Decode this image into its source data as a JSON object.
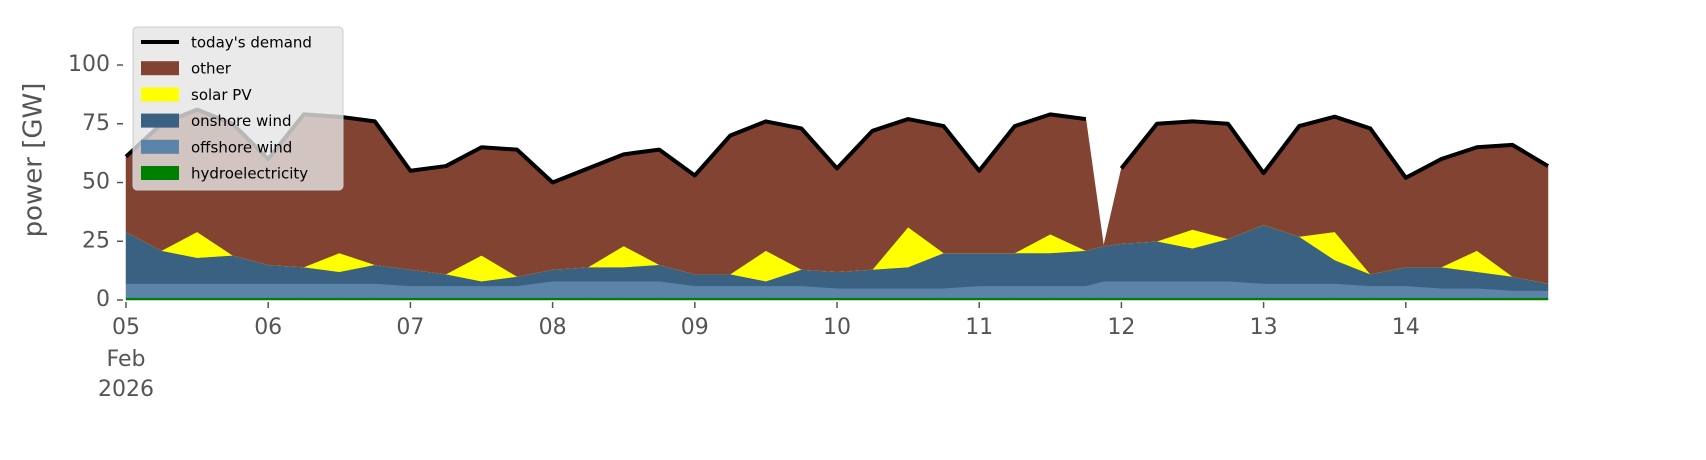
{
  "chart_data": {
    "type": "stacked_area",
    "ylabel": "power [GW]",
    "x_date_label": [
      "Feb",
      "2026"
    ],
    "xlim": [
      "2026-02-05T00:00",
      "2026-02-15T00:00"
    ],
    "xticks": [
      {
        "value": "2026-02-05T00:00",
        "label": "05"
      },
      {
        "value": "2026-02-06T00:00",
        "label": "06"
      },
      {
        "value": "2026-02-07T00:00",
        "label": "07"
      },
      {
        "value": "2026-02-08T00:00",
        "label": "08"
      },
      {
        "value": "2026-02-09T00:00",
        "label": "09"
      },
      {
        "value": "2026-02-10T00:00",
        "label": "10"
      },
      {
        "value": "2026-02-11T00:00",
        "label": "11"
      },
      {
        "value": "2026-02-12T00:00",
        "label": "12"
      },
      {
        "value": "2026-02-13T00:00",
        "label": "13"
      },
      {
        "value": "2026-02-14T00:00",
        "label": "14"
      }
    ],
    "ylim": [
      0,
      120
    ],
    "yticks": [
      0,
      25,
      50,
      75,
      100
    ],
    "legend": "upper left",
    "x": [
      "2026-02-05T00:00",
      "2026-02-05T06:00",
      "2026-02-05T12:00",
      "2026-02-05T18:00",
      "2026-02-06T00:00",
      "2026-02-06T06:00",
      "2026-02-06T12:00",
      "2026-02-06T18:00",
      "2026-02-07T00:00",
      "2026-02-07T06:00",
      "2026-02-07T12:00",
      "2026-02-07T18:00",
      "2026-02-08T00:00",
      "2026-02-08T06:00",
      "2026-02-08T12:00",
      "2026-02-08T18:00",
      "2026-02-09T00:00",
      "2026-02-09T06:00",
      "2026-02-09T12:00",
      "2026-02-09T18:00",
      "2026-02-10T00:00",
      "2026-02-10T06:00",
      "2026-02-10T12:00",
      "2026-02-10T18:00",
      "2026-02-11T00:00",
      "2026-02-11T06:00",
      "2026-02-11T12:00",
      "2026-02-11T18:00",
      "2026-02-11T21:00",
      "2026-02-12T00:00",
      "2026-02-12T06:00",
      "2026-02-12T12:00",
      "2026-02-12T18:00",
      "2026-02-13T00:00",
      "2026-02-13T06:00",
      "2026-02-13T12:00",
      "2026-02-13T18:00",
      "2026-02-14T00:00",
      "2026-02-14T06:00",
      "2026-02-14T12:00",
      "2026-02-14T18:00",
      "2026-02-15T00:00"
    ],
    "series": [
      {
        "name": "today's demand",
        "kind": "line",
        "color": "#000000",
        "values": [
          61,
          75,
          81,
          75,
          60,
          79,
          78,
          76,
          55,
          57,
          65,
          64,
          50,
          56,
          62,
          64,
          53,
          70,
          76,
          73,
          56,
          72,
          77,
          74,
          55,
          74,
          79,
          77,
          null,
          56,
          75,
          76,
          75,
          54,
          74,
          78,
          73,
          52,
          60,
          65,
          66,
          57
        ]
      },
      {
        "name": "other",
        "kind": "area",
        "color": "#834333",
        "values": [
          32,
          54,
          52,
          56,
          45,
          65,
          58,
          61,
          42,
          46,
          46,
          54,
          37,
          42,
          39,
          49,
          42,
          59,
          55,
          60,
          44,
          59,
          46,
          54,
          35,
          54,
          51,
          56,
          0,
          32,
          50,
          46,
          49,
          22,
          47,
          49,
          62,
          38,
          46,
          44,
          56,
          50
        ]
      },
      {
        "name": "solar PV",
        "kind": "area",
        "color": "#ffff00",
        "values": [
          0,
          0,
          11,
          0,
          0,
          0,
          8,
          0,
          0,
          0,
          11,
          0,
          0,
          0,
          9,
          0,
          0,
          0,
          13,
          0,
          0,
          0,
          17,
          0,
          0,
          0,
          8,
          0,
          0,
          0,
          0,
          8,
          0,
          0,
          0,
          12,
          0,
          0,
          0,
          9,
          0,
          0
        ]
      },
      {
        "name": "onshore wind",
        "kind": "area",
        "color": "#3b6182",
        "values": [
          22,
          14,
          11,
          12,
          8,
          7,
          5,
          8,
          7,
          5,
          2,
          4,
          5,
          6,
          6,
          7,
          5,
          5,
          2,
          7,
          7,
          8,
          9,
          15,
          14,
          14,
          14,
          15,
          15,
          16,
          17,
          14,
          18,
          25,
          20,
          10,
          5,
          8,
          9,
          7,
          6,
          3
        ]
      },
      {
        "name": "offshore wind",
        "kind": "area",
        "color": "#5b84a8",
        "values": [
          6,
          6,
          6,
          6,
          6,
          6,
          6,
          6,
          5,
          5,
          5,
          5,
          7,
          7,
          7,
          7,
          5,
          5,
          5,
          5,
          4,
          4,
          4,
          4,
          5,
          5,
          5,
          5,
          7,
          7,
          7,
          7,
          7,
          6,
          6,
          6,
          5,
          5,
          4,
          4,
          3,
          3
        ]
      },
      {
        "name": "hydroelectricity",
        "kind": "area",
        "color": "#008000",
        "values": [
          1,
          1,
          1,
          1,
          1,
          1,
          1,
          1,
          1,
          1,
          1,
          1,
          1,
          1,
          1,
          1,
          1,
          1,
          1,
          1,
          1,
          1,
          1,
          1,
          1,
          1,
          1,
          1,
          1,
          1,
          1,
          1,
          1,
          1,
          1,
          1,
          1,
          1,
          1,
          1,
          1,
          1
        ]
      }
    ]
  }
}
